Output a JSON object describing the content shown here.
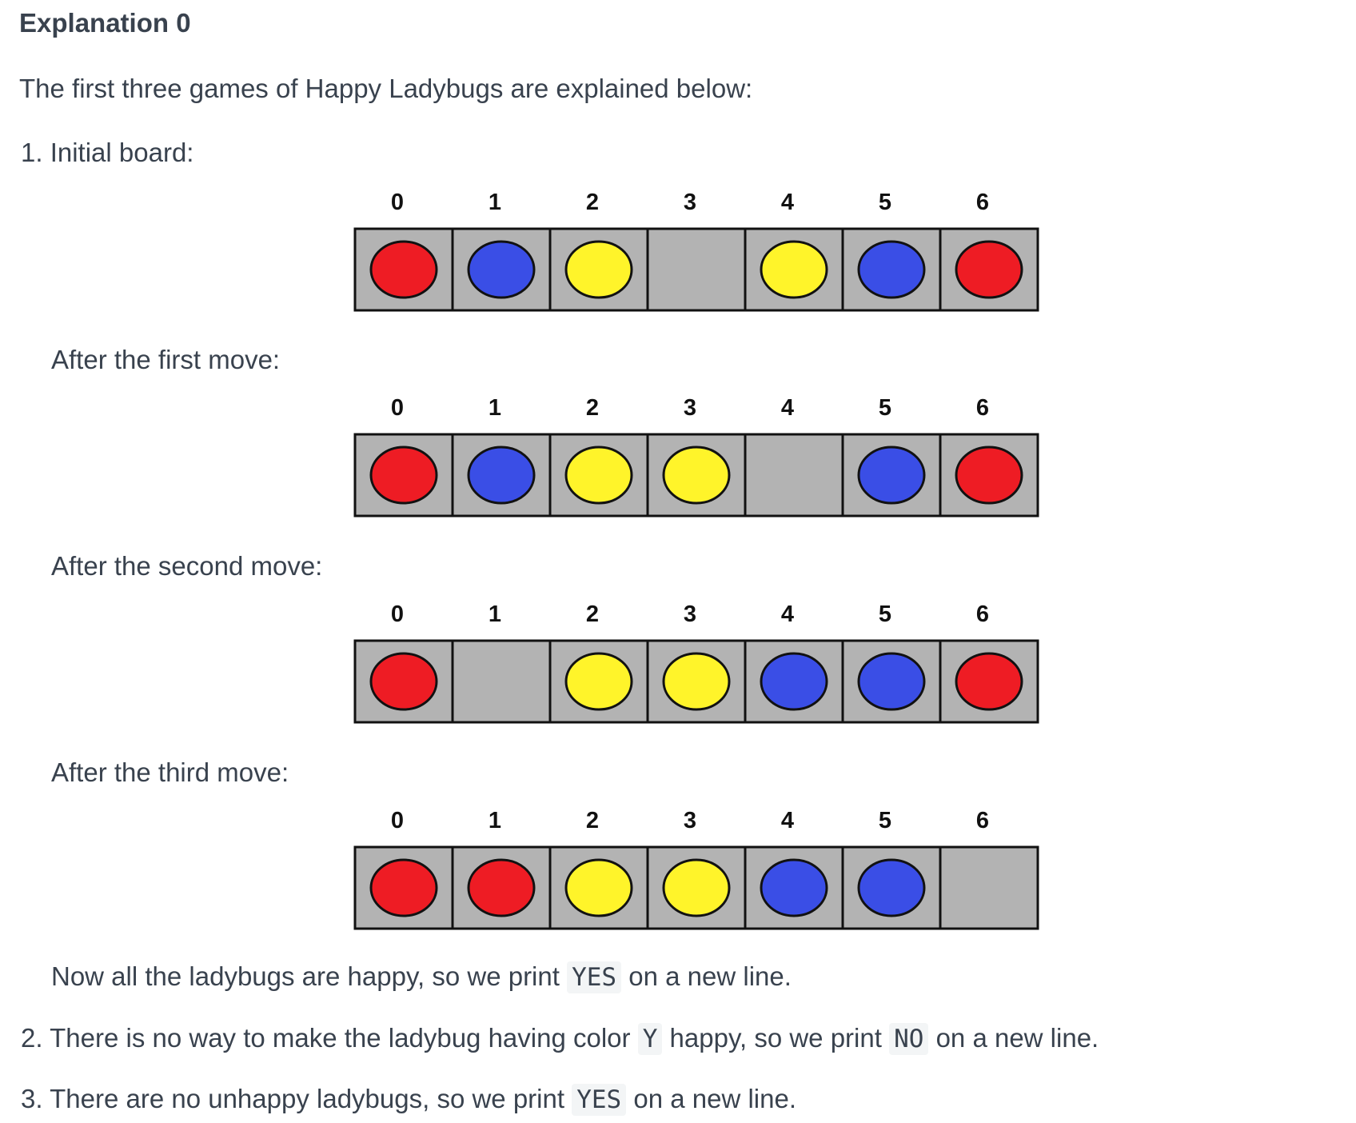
{
  "heading": "Explanation 0",
  "intro": "The first three games of Happy Ladybugs are explained below:",
  "item1": {
    "number": "1.",
    "label": "Initial board:"
  },
  "sub_labels": {
    "first": "After the first move:",
    "second": "After the second move:",
    "third": "After the third move:"
  },
  "colors": {
    "red": "#ee1c24",
    "blue": "#3a4ee6",
    "yellow": "#fff42a",
    "cell": "#b3b3b3"
  },
  "boards": [
    {
      "indices": [
        "0",
        "1",
        "2",
        "3",
        "4",
        "5",
        "6"
      ],
      "cells": [
        "red",
        "blue",
        "yellow",
        "",
        "yellow",
        "blue",
        "red"
      ]
    },
    {
      "indices": [
        "0",
        "1",
        "2",
        "3",
        "4",
        "5",
        "6"
      ],
      "cells": [
        "red",
        "blue",
        "yellow",
        "yellow",
        "",
        "blue",
        "red"
      ]
    },
    {
      "indices": [
        "0",
        "1",
        "2",
        "3",
        "4",
        "5",
        "6"
      ],
      "cells": [
        "red",
        "",
        "yellow",
        "yellow",
        "blue",
        "blue",
        "red"
      ]
    },
    {
      "indices": [
        "0",
        "1",
        "2",
        "3",
        "4",
        "5",
        "6"
      ],
      "cells": [
        "red",
        "red",
        "yellow",
        "yellow",
        "blue",
        "blue",
        ""
      ]
    }
  ],
  "conclusion": {
    "pre": "Now all the ladybugs are happy, so we print",
    "code": "YES",
    "post": "on a new line."
  },
  "item2": {
    "number": "2.",
    "pre": "There is no way to make the ladybug having color",
    "code1": "Y",
    "mid": "happy, so we print",
    "code2": "NO",
    "post": "on a new line."
  },
  "item3": {
    "number": "3.",
    "pre": "There are no unhappy ladybugs, so we print",
    "code": "YES",
    "post": "on a new line."
  }
}
